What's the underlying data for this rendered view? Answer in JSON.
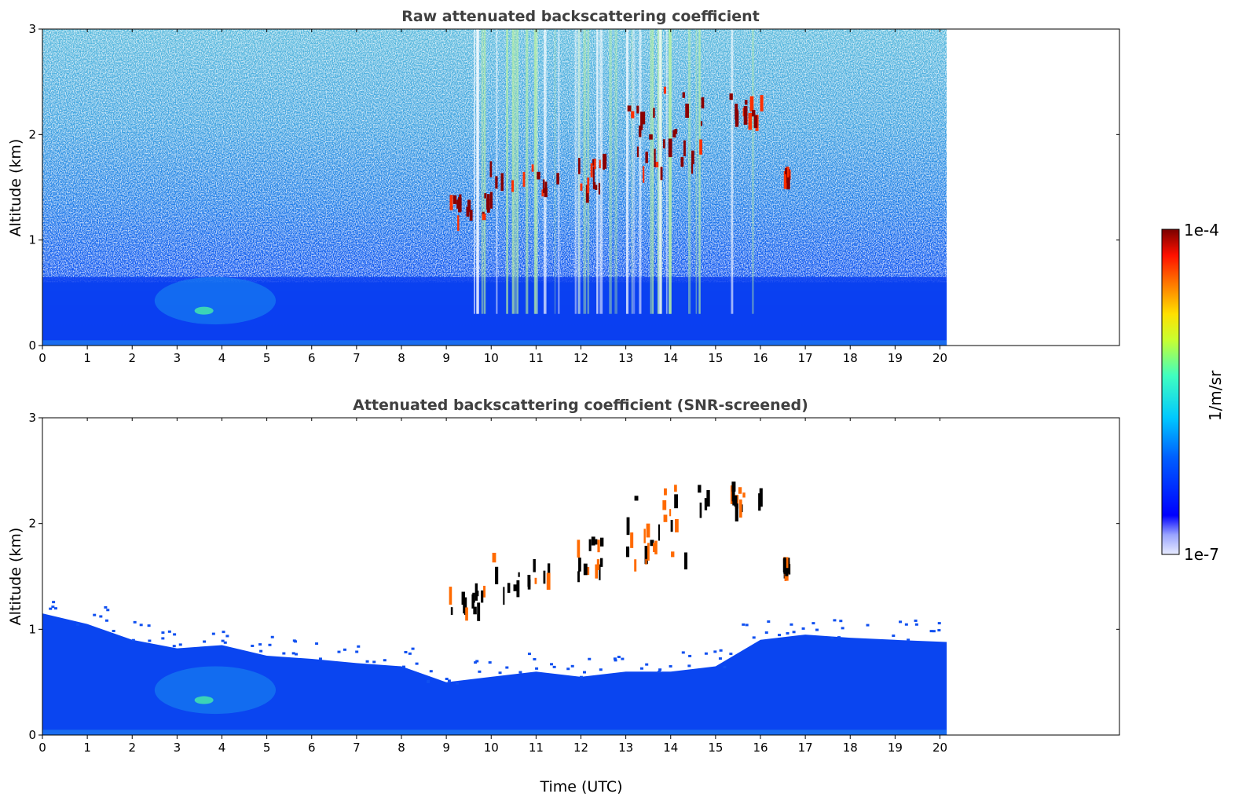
{
  "chart_data": [
    {
      "type": "heatmap",
      "title": "Raw attenuated backscattering coefficient",
      "xlabel": "",
      "ylabel": "Altitude (km)",
      "xlim": [
        0,
        24
      ],
      "ylim": [
        0,
        3
      ],
      "x_ticks": [
        "0",
        "1",
        "2",
        "3",
        "4",
        "5",
        "6",
        "7",
        "8",
        "9",
        "10",
        "11",
        "12",
        "13",
        "14",
        "15",
        "16",
        "17",
        "18",
        "19",
        "20"
      ],
      "y_ticks": [
        "0",
        "1",
        "2",
        "3"
      ],
      "data_end_time": 20.15,
      "cloud_layers": [
        {
          "time_start": 9.0,
          "time_end": 9.9,
          "alt_min": 1.2,
          "alt_max": 1.45
        },
        {
          "time_start": 9.9,
          "time_end": 11.5,
          "alt_min": 1.4,
          "alt_max": 1.75
        },
        {
          "time_start": 11.8,
          "time_end": 12.5,
          "alt_min": 1.5,
          "alt_max": 1.9
        },
        {
          "time_start": 13.0,
          "time_end": 13.8,
          "alt_min": 1.6,
          "alt_max": 2.35
        },
        {
          "time_start": 13.8,
          "time_end": 14.9,
          "alt_min": 1.7,
          "alt_max": 2.5
        },
        {
          "time_start": 15.3,
          "time_end": 16.0,
          "alt_min": 2.15,
          "alt_max": 2.4
        },
        {
          "time_start": 16.5,
          "time_end": 16.6,
          "alt_min": 1.6,
          "alt_max": 1.7
        }
      ],
      "aerosol_feature": {
        "time_start": 2.5,
        "time_end": 5.2,
        "alt_min": 0.2,
        "alt_max": 0.65
      }
    },
    {
      "type": "heatmap",
      "title": "Attenuated backscattering coefficient (SNR-screened)",
      "xlabel": "Time (UTC)",
      "ylabel": "Altitude (km)",
      "xlim": [
        0,
        24
      ],
      "ylim": [
        0,
        3
      ],
      "x_ticks": [
        "0",
        "1",
        "2",
        "3",
        "4",
        "5",
        "6",
        "7",
        "8",
        "9",
        "10",
        "11",
        "12",
        "13",
        "14",
        "15",
        "16",
        "17",
        "18",
        "19",
        "20"
      ],
      "y_ticks": [
        "0",
        "1",
        "2",
        "3"
      ],
      "data_end_time": 20.15,
      "boundary_layer_top": [
        [
          0,
          1.15
        ],
        [
          1,
          1.05
        ],
        [
          2,
          0.9
        ],
        [
          3,
          0.82
        ],
        [
          4,
          0.85
        ],
        [
          5,
          0.75
        ],
        [
          6,
          0.72
        ],
        [
          7,
          0.68
        ],
        [
          8,
          0.65
        ],
        [
          9,
          0.5
        ],
        [
          10,
          0.55
        ],
        [
          11,
          0.6
        ],
        [
          12,
          0.55
        ],
        [
          13,
          0.6
        ],
        [
          14,
          0.6
        ],
        [
          15,
          0.65
        ],
        [
          16,
          0.9
        ],
        [
          17,
          0.95
        ],
        [
          18,
          0.92
        ],
        [
          19,
          0.9
        ],
        [
          20.15,
          0.88
        ]
      ]
    }
  ],
  "colorbar": {
    "label": "1/m/sr",
    "max_label": "1e-4",
    "min_label": "1e-7",
    "colormap": "jet"
  }
}
